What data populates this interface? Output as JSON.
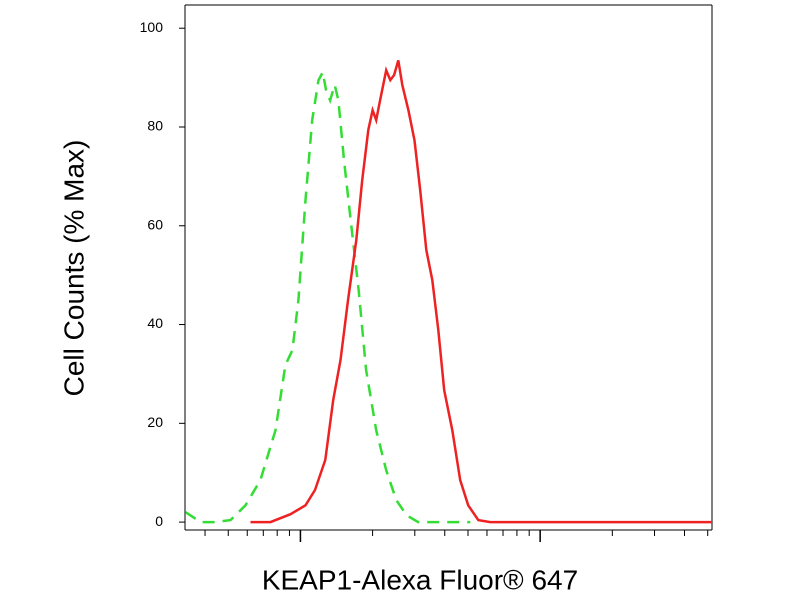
{
  "chart_data": {
    "type": "line",
    "y_label": "Cell Counts (% Max)",
    "x_label": "KEAP1-Alexa Fluor® 647",
    "x_log": true,
    "xlim": [
      33,
      5210
    ],
    "xticks": [
      100,
      1000
    ],
    "ylim": [
      -1.6,
      104.7
    ],
    "yticks": [
      0,
      20,
      40,
      60,
      80,
      100
    ],
    "series": [
      {
        "color": "#33dd33",
        "dashed": true,
        "x": [
          33.2,
          38.3,
          44.3,
          51.1,
          59.0,
          68.1,
          78.7,
          86.6,
          92.6,
          98.1,
          105,
          112,
          119,
          124,
          128,
          133,
          139,
          144,
          152,
          162,
          175,
          188,
          207,
          228,
          251,
          277,
          310,
          348,
          422,
          511
        ],
        "values": [
          2,
          0,
          0,
          0.4,
          3.4,
          8.5,
          18.6,
          31.8,
          34.8,
          44.9,
          65.2,
          81.4,
          89.5,
          91.1,
          87.4,
          85.4,
          88.5,
          85.4,
          73.3,
          61.1,
          46.9,
          30.8,
          18.6,
          10.5,
          4.5,
          1.4,
          0,
          0,
          0,
          0
        ]
      },
      {
        "color": "#ee2222",
        "dashed": false,
        "x": [
          61.9,
          75,
          90.9,
          105,
          115,
          127,
          137,
          147,
          158,
          171,
          181,
          192,
          200,
          207,
          215,
          228,
          237,
          246,
          256,
          266,
          282,
          299,
          316,
          335,
          355,
          376,
          398,
          430,
          464,
          501,
          552,
          619,
          826,
          1778,
          5210
        ],
        "values": [
          0,
          0,
          1.6,
          3.4,
          6.5,
          12.6,
          24.7,
          32.8,
          44.9,
          57.1,
          69.2,
          79.4,
          83.4,
          81.4,
          85.4,
          91.5,
          89.5,
          90.5,
          93.5,
          88.5,
          83.4,
          77.3,
          67.2,
          55.1,
          49,
          38.9,
          26.7,
          18.6,
          8.5,
          3.4,
          0.4,
          0,
          0,
          0,
          0
        ]
      }
    ]
  }
}
